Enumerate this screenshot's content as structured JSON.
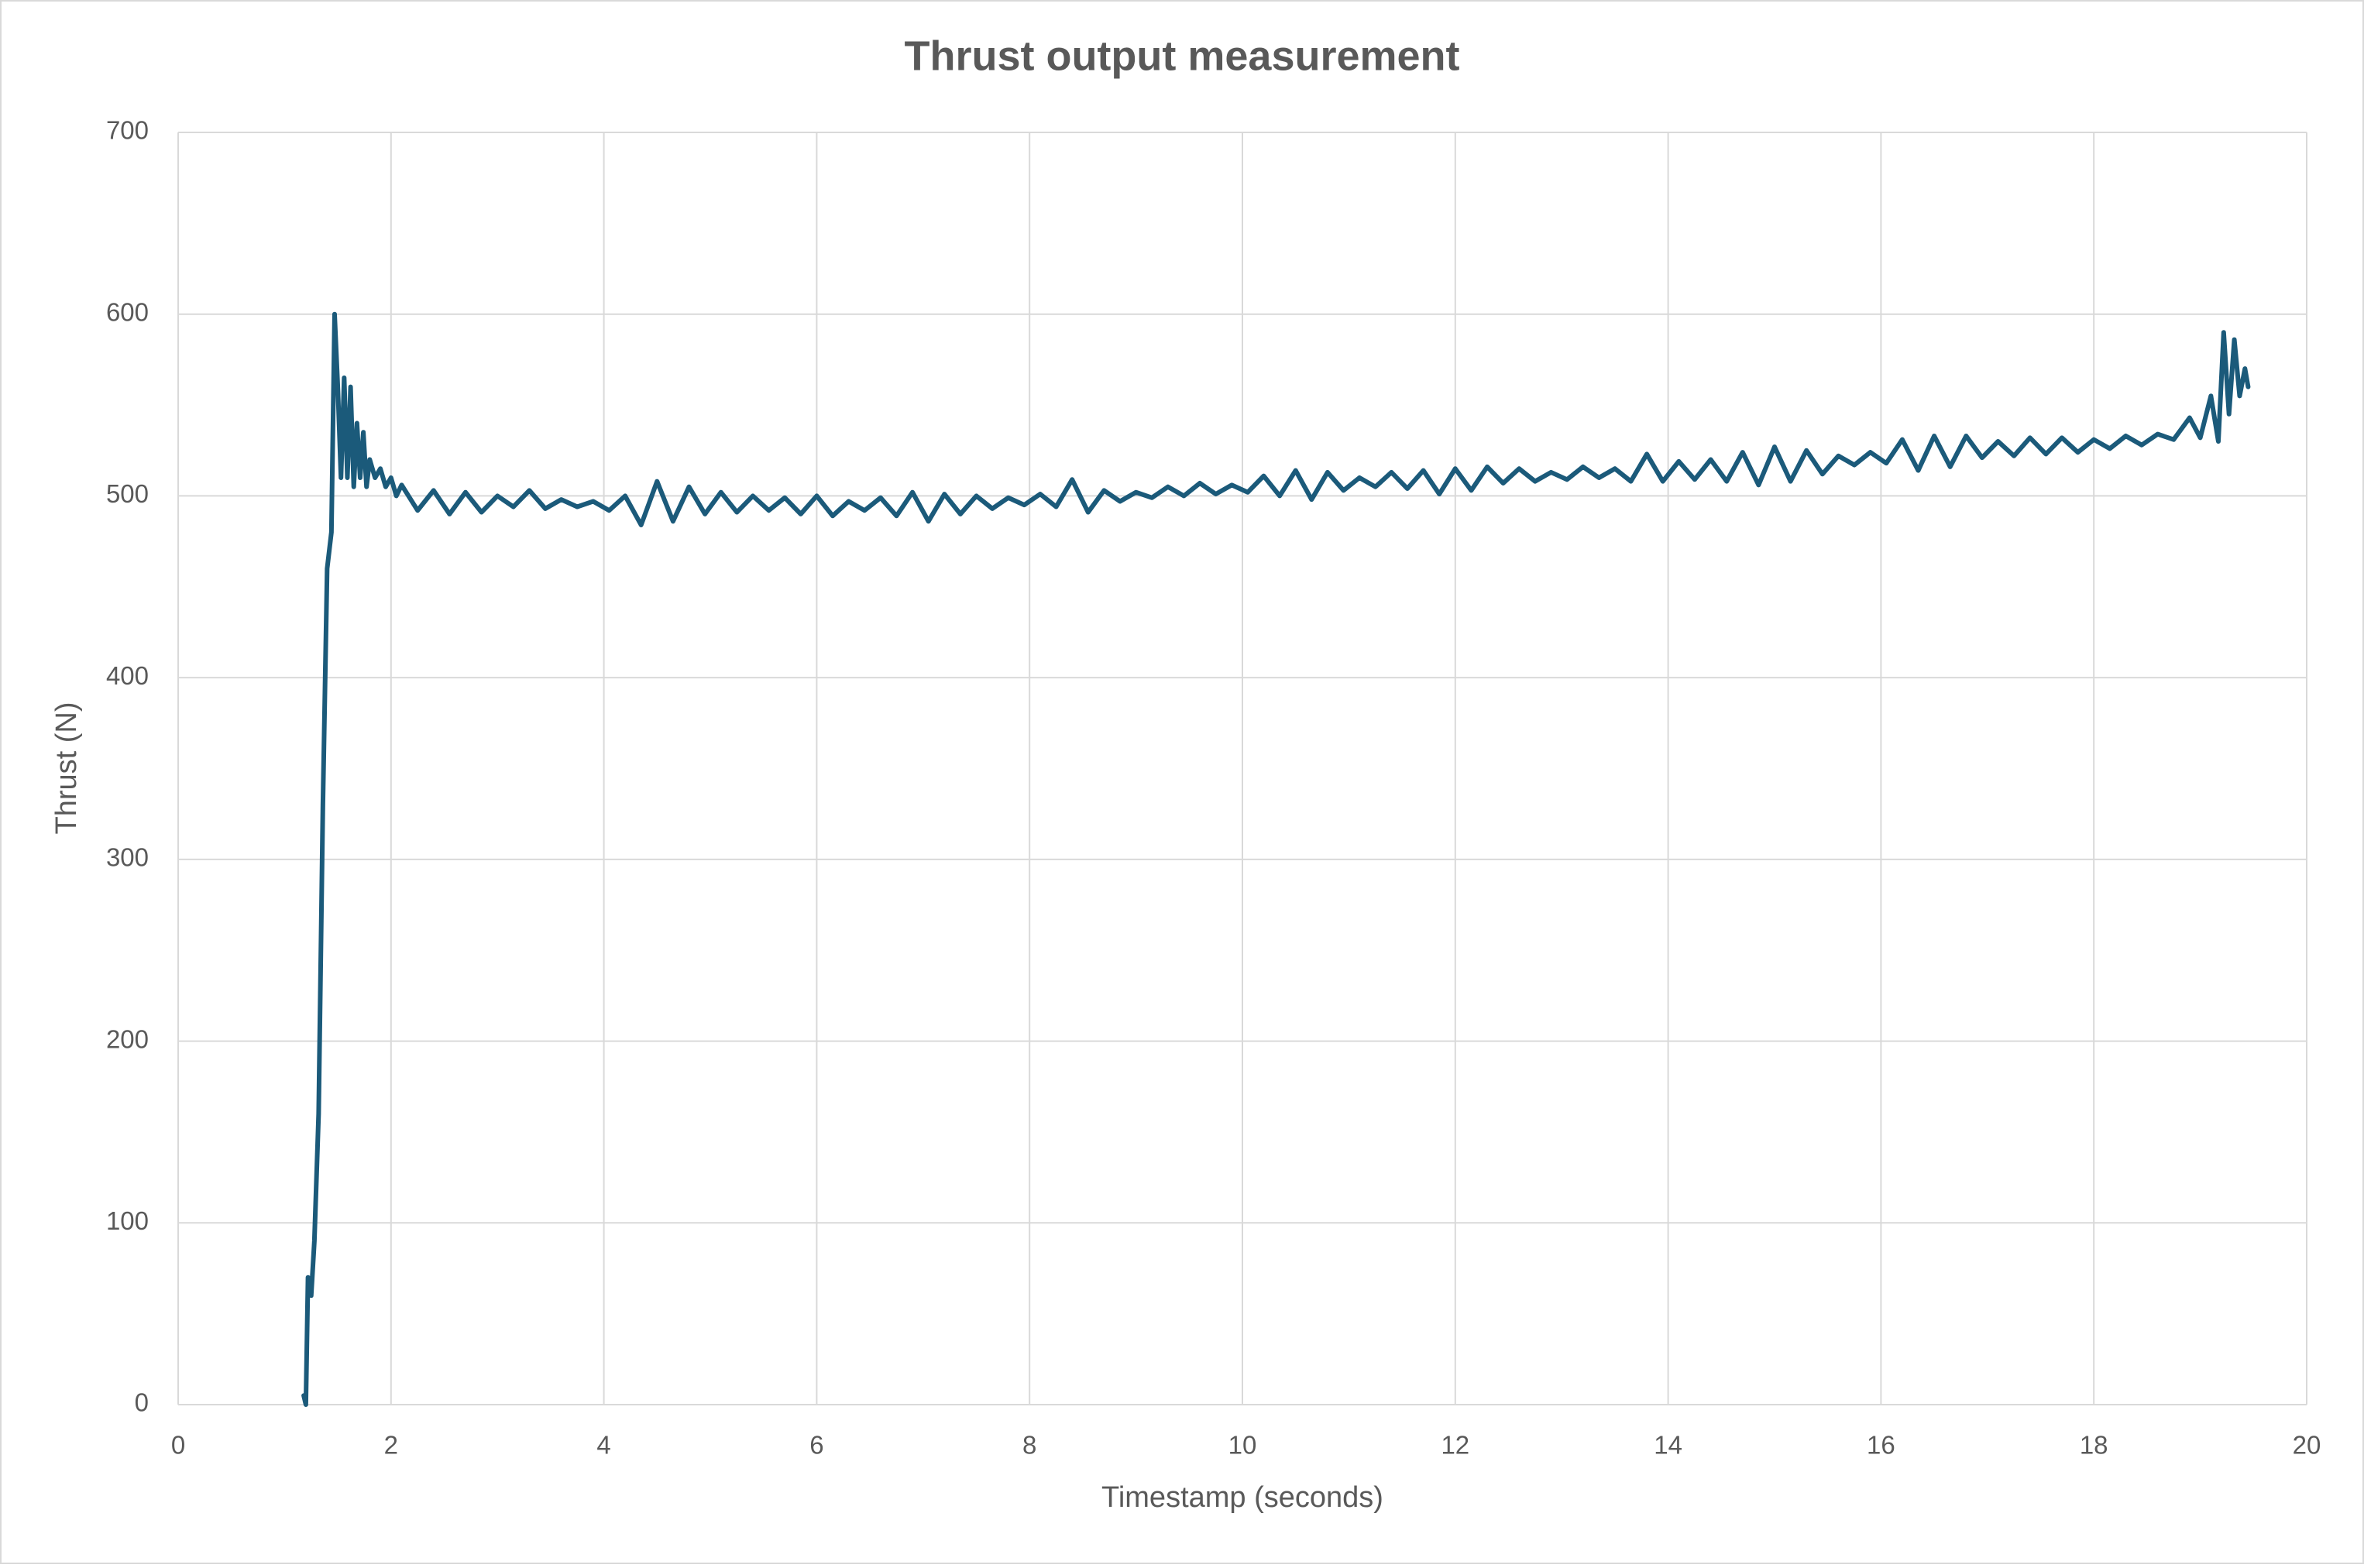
{
  "chart_data": {
    "type": "line",
    "title": "Thrust output measurement",
    "x_label": "Timestamp (seconds)",
    "y_label": "Thrust (N)",
    "xlim": [
      0,
      20
    ],
    "xticks": [
      0,
      2,
      4,
      6,
      8,
      10,
      12,
      14,
      16,
      18,
      20
    ],
    "ylim": [
      0,
      700
    ],
    "yticks": [
      0,
      100,
      200,
      300,
      400,
      500,
      600,
      700
    ],
    "grid": true,
    "x": [
      1.18,
      1.2,
      1.22,
      1.25,
      1.28,
      1.32,
      1.36,
      1.4,
      1.44,
      1.47,
      1.5,
      1.53,
      1.56,
      1.59,
      1.62,
      1.65,
      1.68,
      1.71,
      1.74,
      1.77,
      1.8,
      1.85,
      1.9,
      1.95,
      2.0,
      2.05,
      2.1,
      2.25,
      2.4,
      2.55,
      2.7,
      2.85,
      3.0,
      3.15,
      3.3,
      3.45,
      3.6,
      3.75,
      3.9,
      4.05,
      4.2,
      4.35,
      4.5,
      4.65,
      4.8,
      4.95,
      5.1,
      5.25,
      5.4,
      5.55,
      5.7,
      5.85,
      6.0,
      6.15,
      6.3,
      6.45,
      6.6,
      6.75,
      6.9,
      7.05,
      7.2,
      7.35,
      7.5,
      7.65,
      7.8,
      7.95,
      8.1,
      8.25,
      8.4,
      8.55,
      8.7,
      8.85,
      9.0,
      9.15,
      9.3,
      9.45,
      9.6,
      9.75,
      9.9,
      10.05,
      10.2,
      10.35,
      10.5,
      10.65,
      10.8,
      10.95,
      11.1,
      11.25,
      11.4,
      11.55,
      11.7,
      11.85,
      12.0,
      12.15,
      12.3,
      12.45,
      12.6,
      12.75,
      12.9,
      13.05,
      13.2,
      13.35,
      13.5,
      13.65,
      13.8,
      13.95,
      14.1,
      14.25,
      14.4,
      14.55,
      14.7,
      14.85,
      15.0,
      15.15,
      15.3,
      15.45,
      15.6,
      15.75,
      15.9,
      16.05,
      16.2,
      16.35,
      16.5,
      16.65,
      16.8,
      16.95,
      17.1,
      17.25,
      17.4,
      17.55,
      17.7,
      17.85,
      18.0,
      18.15,
      18.3,
      18.45,
      18.6,
      18.75,
      18.9,
      19.0,
      19.1,
      19.17,
      19.22,
      19.27,
      19.32,
      19.37,
      19.42,
      19.45
    ],
    "series": [
      {
        "name": "Thrust",
        "color": "#1b5a7a",
        "values": [
          5,
          0,
          70,
          60,
          90,
          160,
          330,
          460,
          480,
          600,
          560,
          510,
          565,
          510,
          560,
          505,
          540,
          510,
          535,
          505,
          520,
          510,
          515,
          505,
          510,
          500,
          506,
          492,
          503,
          490,
          502,
          491,
          500,
          494,
          503,
          493,
          498,
          494,
          497,
          492,
          500,
          484,
          508,
          486,
          505,
          490,
          502,
          491,
          500,
          492,
          499,
          490,
          500,
          489,
          497,
          492,
          499,
          489,
          502,
          486,
          501,
          490,
          500,
          493,
          499,
          495,
          501,
          494,
          509,
          491,
          503,
          497,
          502,
          499,
          505,
          500,
          507,
          501,
          506,
          502,
          511,
          500,
          514,
          498,
          513,
          503,
          510,
          505,
          513,
          504,
          514,
          501,
          515,
          503,
          516,
          507,
          515,
          508,
          513,
          509,
          516,
          510,
          515,
          508,
          523,
          508,
          519,
          509,
          520,
          508,
          524,
          506,
          527,
          508,
          525,
          512,
          522,
          517,
          524,
          518,
          531,
          514,
          533,
          516,
          533,
          521,
          530,
          522,
          532,
          523,
          532,
          524,
          531,
          526,
          533,
          528,
          534,
          531,
          543,
          532,
          555,
          530,
          590,
          545,
          586,
          555,
          570,
          560
        ]
      }
    ]
  }
}
